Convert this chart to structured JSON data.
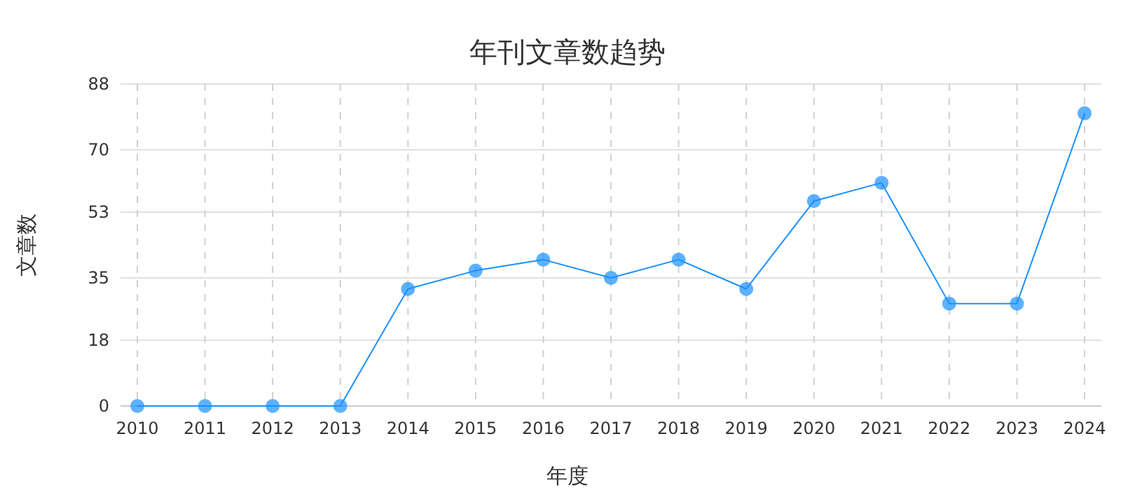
{
  "chart_data": {
    "type": "line",
    "title": "年刊文章数趋势",
    "xlabel": "年度",
    "ylabel": "文章数",
    "categories": [
      "2010",
      "2011",
      "2012",
      "2013",
      "2014",
      "2015",
      "2016",
      "2017",
      "2018",
      "2019",
      "2020",
      "2021",
      "2022",
      "2023",
      "2024"
    ],
    "series": [
      {
        "color": "#1890ff",
        "values": [
          0,
          0,
          0,
          0,
          32,
          37,
          40,
          35,
          40,
          32,
          56,
          61,
          28,
          28,
          80
        ]
      }
    ],
    "ylim": [
      0,
      88
    ],
    "yticks": [
      0,
      18,
      35,
      53,
      70,
      88
    ],
    "grid": true,
    "marker": "circle",
    "line_style": "solid"
  }
}
